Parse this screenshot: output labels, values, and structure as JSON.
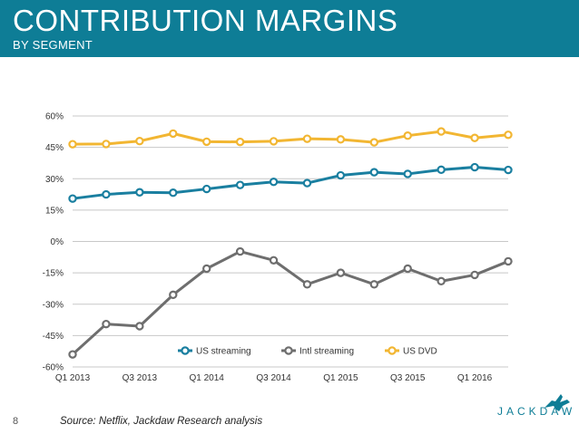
{
  "header": {
    "title": "CONTRIBUTION MARGINS",
    "subtitle": "BY SEGMENT"
  },
  "chart_data": {
    "type": "line",
    "title": "Contribution Margins",
    "subtitle": "By Segment",
    "x": [
      "Q1 2013",
      "Q2 2013",
      "Q3 2013",
      "Q4 2013",
      "Q1 2014",
      "Q2 2014",
      "Q3 2014",
      "Q4 2014",
      "Q1 2015",
      "Q2 2015",
      "Q3 2015",
      "Q4 2015",
      "Q1 2016",
      "Q2 2016"
    ],
    "x_tick_labels": [
      "Q1 2013",
      "Q3 2013",
      "Q1 2014",
      "Q3 2014",
      "Q1 2015",
      "Q3 2015",
      "Q1 2016"
    ],
    "y_tick_labels": [
      "-60%",
      "-45%",
      "-30%",
      "-15%",
      "0%",
      "15%",
      "30%",
      "45%",
      "60%"
    ],
    "ylim": [
      -60,
      60
    ],
    "ytick_step": 15,
    "grid": true,
    "legend_position": "bottom-center",
    "series": [
      {
        "name": "US streaming",
        "color": "#1a7fa0",
        "values": [
          20.5,
          22.5,
          23.5,
          23.3,
          25.1,
          27.0,
          28.5,
          27.9,
          31.6,
          33.1,
          32.3,
          34.3,
          35.5,
          34.2
        ]
      },
      {
        "name": "Intl streaming",
        "color": "#6e6e6e",
        "values": [
          -54.0,
          -39.5,
          -40.5,
          -25.5,
          -13.0,
          -4.8,
          -9.0,
          -20.5,
          -15.0,
          -20.5,
          -13.0,
          -19.0,
          -16.0,
          -9.5
        ]
      },
      {
        "name": "US DVD",
        "color": "#f2b632",
        "values": [
          46.5,
          46.6,
          48.0,
          51.6,
          47.7,
          47.6,
          47.9,
          49.1,
          48.8,
          47.4,
          50.6,
          52.6,
          49.5,
          51.0
        ]
      }
    ]
  },
  "footer": {
    "page_number": "8",
    "source": "Source: Netflix, Jackdaw Research analysis",
    "brand": "JACKDAW"
  },
  "colors": {
    "header_bg": "#0e7d96",
    "grid": "#c8c8c8"
  }
}
